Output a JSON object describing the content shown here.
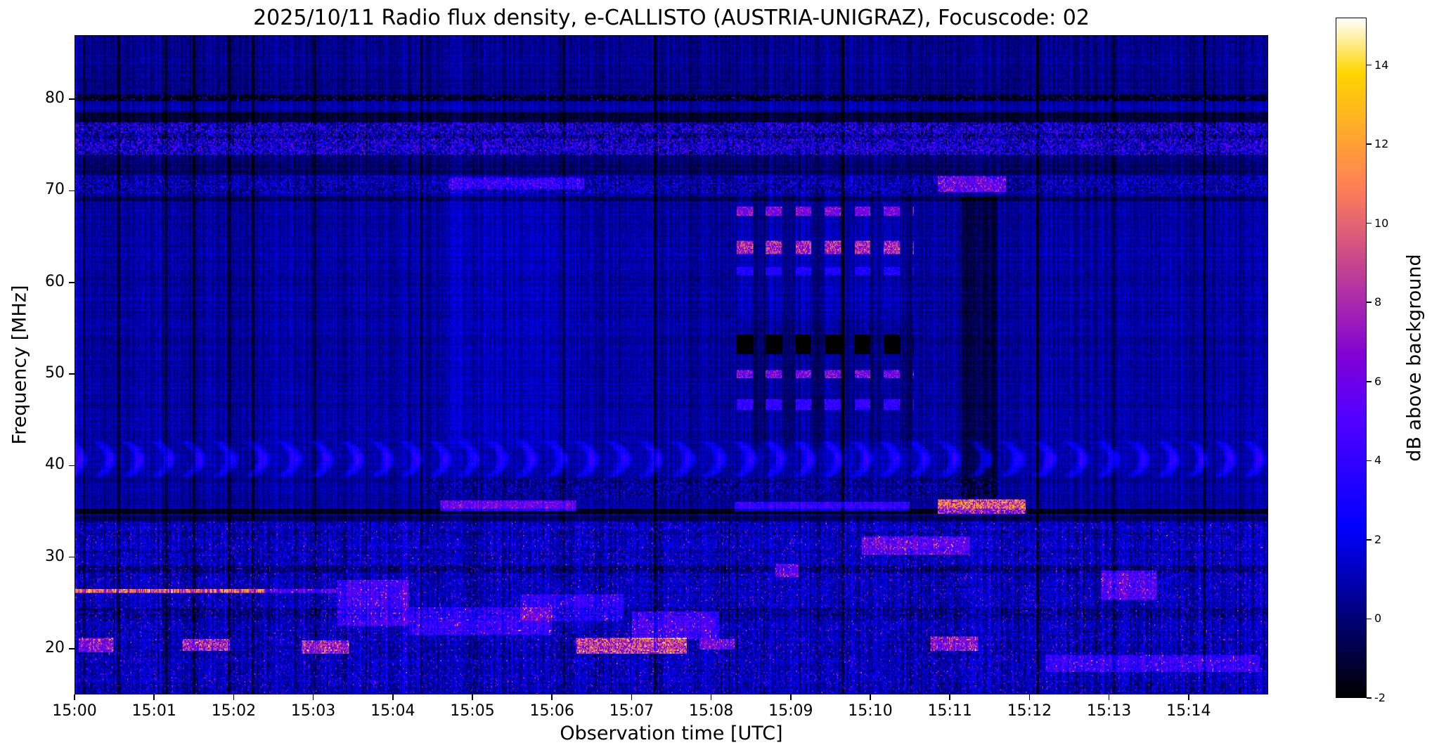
{
  "chart": {
    "title": "2025/10/11  Radio flux density, e-CALLISTO (AUSTRIA-UNIGRAZ), Focuscode: 02",
    "xlabel": "Observation time [UTC]",
    "ylabel": "Frequency [MHz]",
    "colorbar_label": "dB above background"
  },
  "chart_data": {
    "type": "heatmap",
    "subtype": "radio-spectrogram",
    "title": "2025/10/11  Radio flux density, e-CALLISTO (AUSTRIA-UNIGRAZ), Focuscode: 02",
    "date": "2025/10/11",
    "instrument": "e-CALLISTO (AUSTRIA-UNIGRAZ)",
    "focuscode": "02",
    "xlabel": "Observation time [UTC]",
    "ylabel": "Frequency [MHz]",
    "colorbar_label": "dB above background",
    "x_ticks": [
      "15:00",
      "15:01",
      "15:02",
      "15:03",
      "15:04",
      "15:05",
      "15:06",
      "15:07",
      "15:08",
      "15:09",
      "15:10",
      "15:11",
      "15:12",
      "15:13",
      "15:14"
    ],
    "x_range_minutes": [
      0,
      15
    ],
    "y_ticks": [
      20,
      30,
      40,
      50,
      60,
      70,
      80
    ],
    "y_range": [
      15,
      87
    ],
    "value_range": [
      -2,
      15.2
    ],
    "colorbar_ticks": [
      -2,
      0,
      2,
      4,
      6,
      8,
      10,
      12,
      14
    ],
    "colormap": "gnuplot2 (black-blue-magenta-orange-yellow-white)",
    "grid": false,
    "background_level_db": 0.5,
    "features": [
      {
        "type": "bright_segment",
        "t0": 0,
        "t1": 0.03,
        "f0": 15,
        "f1": 87,
        "amp": 3,
        "label": "startup column"
      },
      {
        "type": "dark_band",
        "f0": 80.5,
        "f1": 87,
        "amp": -0.4
      },
      {
        "type": "dark_band",
        "f0": 79.85,
        "f1": 80.5,
        "amp": -2.0,
        "label": "dark 80 MHz line"
      },
      {
        "type": "speckle_band",
        "f0": 79.85,
        "f1": 80.5,
        "density": 0.1,
        "amp": 5
      },
      {
        "type": "speckle_band",
        "f0": 73.9,
        "f1": 77.5,
        "density": 0.5,
        "amp": 5.5,
        "label": "broadcast RFI band 74-77 MHz"
      },
      {
        "type": "dark_band",
        "f0": 77.5,
        "f1": 78.7,
        "amp": -2.0
      },
      {
        "type": "dark_band",
        "f0": 75.8,
        "f1": 76.2,
        "amp": -1.2
      },
      {
        "type": "dark_band",
        "f0": 71.8,
        "f1": 73.9,
        "amp": -1.0
      },
      {
        "type": "speckle_band",
        "f0": 69.7,
        "f1": 71.6,
        "density": 0.4,
        "amp": 3.5,
        "label": "70 MHz band"
      },
      {
        "type": "dark_band",
        "f0": 68.9,
        "f1": 69.4,
        "amp": -1.4
      },
      {
        "type": "bright_segment",
        "t0": 4.7,
        "t1": 6.4,
        "f0": 70.2,
        "f1": 71.4,
        "amp": 4
      },
      {
        "type": "bright_segment",
        "t0": 10.85,
        "t1": 11.7,
        "f0": 69.8,
        "f1": 71.6,
        "amp": 6.5,
        "label": "bright 70 MHz at 15:11"
      },
      {
        "type": "bright_segment",
        "t0": 4.7,
        "t1": 6.3,
        "f0": 42,
        "f1": 70,
        "amp": 0.5
      },
      {
        "type": "wave_band",
        "f0": 38.8,
        "f1": 42.6,
        "amp": 3,
        "period": 0.38,
        "label": "scalloped interference 39-42 MHz"
      },
      {
        "type": "dark_band",
        "f0": 34.75,
        "f1": 35.3,
        "amp": -2.4,
        "label": "dark 35 MHz line"
      },
      {
        "type": "speckle_band",
        "f0": 36.4,
        "f1": 38.6,
        "density": 0.3,
        "amp": 3,
        "t0": 4.4,
        "t1": 11.6
      },
      {
        "type": "bright_segment",
        "t0": 4.6,
        "t1": 6.3,
        "f0": 35.0,
        "f1": 36.2,
        "amp": 7
      },
      {
        "type": "bright_segment",
        "t0": 8.3,
        "t1": 10.5,
        "f0": 35.0,
        "f1": 36.0,
        "amp": 4.5
      },
      {
        "type": "bright_segment",
        "t0": 10.85,
        "t1": 11.95,
        "f0": 34.75,
        "f1": 36.3,
        "amp": 12.5,
        "label": "yellow 35 MHz blaze at 15:11"
      },
      {
        "type": "rfi_zone",
        "f0": 15,
        "f1": 33.8,
        "speckle": 2.6,
        "spark_density": 0.055,
        "spark_amp": 6,
        "label": "broadband HF RFI below 34 MHz"
      },
      {
        "type": "dark_band",
        "f0": 33.8,
        "f1": 34.6,
        "amp": -1.1
      },
      {
        "type": "dark_band",
        "f0": 28.2,
        "f1": 29.0,
        "amp": -0.9
      },
      {
        "type": "dark_band",
        "f0": 23.6,
        "f1": 24.4,
        "amp": -0.8
      },
      {
        "type": "bright_line",
        "f": 26.3,
        "t0": 0,
        "t1": 2.4,
        "amp": 11,
        "thickness": 0.55,
        "label": "26 MHz carrier 15:00-15:02"
      },
      {
        "type": "bright_line",
        "f": 26.3,
        "t0": 2.4,
        "t1": 3.3,
        "amp": 5,
        "thickness": 0.45
      },
      {
        "type": "bright_segment",
        "t0": 0.05,
        "t1": 0.5,
        "f0": 19.6,
        "f1": 21.2,
        "amp": 8
      },
      {
        "type": "bright_segment",
        "t0": 1.35,
        "t1": 1.95,
        "f0": 19.7,
        "f1": 21.1,
        "amp": 9
      },
      {
        "type": "bright_segment",
        "t0": 2.85,
        "t1": 3.45,
        "f0": 19.5,
        "f1": 20.9,
        "amp": 9
      },
      {
        "type": "bright_segment",
        "t0": 3.3,
        "t1": 4.2,
        "f0": 22.5,
        "f1": 27.5,
        "amp": 4.5,
        "label": "diagonal streaks near 15:03-15:04"
      },
      {
        "type": "bright_segment",
        "t0": 4.2,
        "t1": 6.0,
        "f0": 21.5,
        "f1": 24.5,
        "amp": 4
      },
      {
        "type": "bright_segment",
        "t0": 5.6,
        "t1": 6.9,
        "f0": 23.0,
        "f1": 26.0,
        "amp": 3.5
      },
      {
        "type": "bright_segment",
        "t0": 6.3,
        "t1": 7.7,
        "f0": 19.4,
        "f1": 21.2,
        "amp": 10,
        "label": "bright 20 MHz cluster 15:06-15:07"
      },
      {
        "type": "bright_segment",
        "t0": 7.0,
        "t1": 8.1,
        "f0": 21.0,
        "f1": 24.0,
        "amp": 4.5
      },
      {
        "type": "bright_segment",
        "t0": 7.85,
        "t1": 8.3,
        "f0": 19.9,
        "f1": 21.0,
        "amp": 7
      },
      {
        "type": "bright_segment",
        "t0": 8.8,
        "t1": 9.1,
        "f0": 27.8,
        "f1": 29.2,
        "amp": 6.5
      },
      {
        "type": "bright_segment",
        "t0": 9.9,
        "t1": 11.25,
        "f0": 30.3,
        "f1": 32.3,
        "amp": 6,
        "label": "31 MHz activity 15:10-15:11"
      },
      {
        "type": "bright_segment",
        "t0": 10.75,
        "t1": 11.35,
        "f0": 19.7,
        "f1": 21.3,
        "amp": 8
      },
      {
        "type": "bright_segment",
        "t0": 12.2,
        "t1": 14.9,
        "f0": 17.4,
        "f1": 19.3,
        "amp": 4
      },
      {
        "type": "bright_segment",
        "t0": 12.9,
        "t1": 13.6,
        "f0": 25.3,
        "f1": 28.6,
        "amp": 5.5
      },
      {
        "type": "periodic_bursts",
        "t0": 8.32,
        "t1": 10.55,
        "period": 0.37,
        "duty": 0.55,
        "col_f0": 42,
        "col_f1": 70,
        "col_amp": 0.35,
        "rows": [
          {
            "f0": 67.3,
            "f1": 68.3,
            "amp": 8.5
          },
          {
            "f0": 63.1,
            "f1": 64.6,
            "amp": 10.5
          },
          {
            "f0": 60.8,
            "f1": 61.7,
            "amp": 4.5
          },
          {
            "f0": 52.1,
            "f1": 54.3,
            "amp": -3.5
          },
          {
            "f0": 49.5,
            "f1": 50.4,
            "amp": 9
          },
          {
            "f0": 46.1,
            "f1": 47.3,
            "amp": 6
          }
        ],
        "label": "periodic switched RFI bursts 15:08-15:10, 46-68 MHz"
      },
      {
        "type": "dark_column",
        "t0": 8.32,
        "t1": 10.55,
        "f0": 42.5,
        "f1": 56.0,
        "amp": -0.5
      },
      {
        "type": "dark_column",
        "t0": 11.15,
        "t1": 11.6,
        "f0": 36.5,
        "f1": 69.5,
        "amp": -1.5,
        "label": "dark lane at 15:11"
      },
      {
        "type": "dark_vlines",
        "times": [
          0.12,
          0.55,
          1.15,
          1.5,
          1.95,
          2.25,
          3.02,
          4.35,
          6.15,
          7.3,
          9.65,
          12.1,
          13.05,
          14.2
        ],
        "amp": -1.7,
        "width": 0.02
      }
    ]
  }
}
